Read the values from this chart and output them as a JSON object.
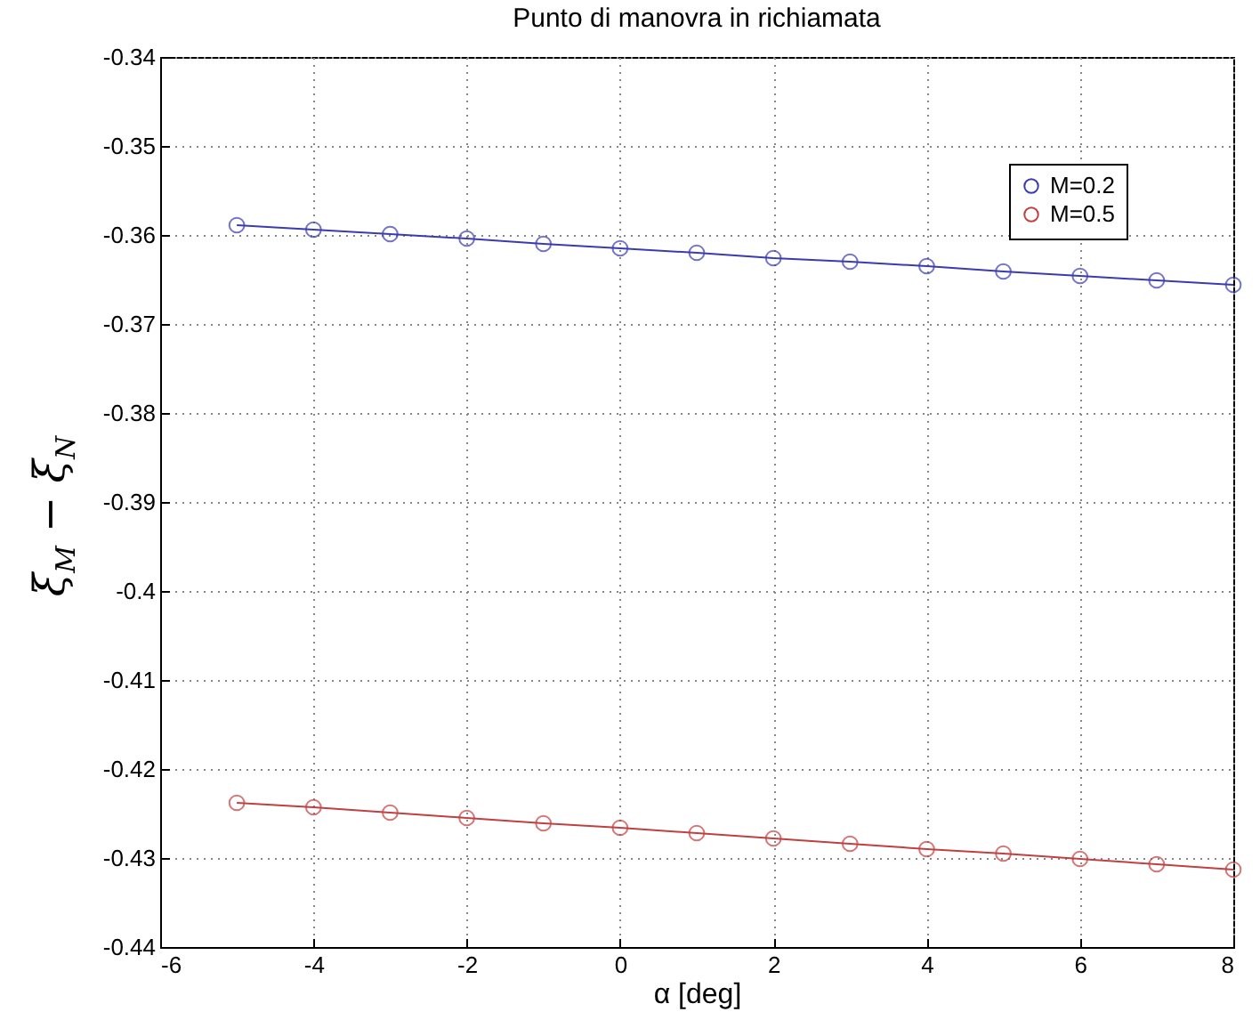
{
  "chart_data": {
    "type": "line",
    "title": "Punto di manovra in richiamata",
    "xlabel": "α  [deg]",
    "ylabel": "ξ$_{M}$ − ξ$_{N}$",
    "x": [
      -5,
      -4,
      -3,
      -2,
      -1,
      0,
      1,
      2,
      3,
      4,
      5,
      6,
      7,
      8
    ],
    "series": [
      {
        "name": "M=0.2",
        "color": "#3b3bb0",
        "values": [
          -0.3589,
          -0.3594,
          -0.3599,
          -0.3604,
          -0.361,
          -0.3615,
          -0.362,
          -0.3626,
          -0.363,
          -0.3635,
          -0.3641,
          -0.3646,
          -0.3651,
          -0.3656
        ]
      },
      {
        "name": "M=0.5",
        "color": "#c04040",
        "values": [
          -0.4238,
          -0.4243,
          -0.4249,
          -0.4255,
          -0.4261,
          -0.4266,
          -0.4272,
          -0.4278,
          -0.4284,
          -0.429,
          -0.4295,
          -0.4301,
          -0.4307,
          -0.4313
        ]
      }
    ],
    "xlim": [
      -6,
      8
    ],
    "xticks": [
      -6,
      -4,
      -2,
      0,
      2,
      4,
      6,
      8
    ],
    "ylim": [
      -0.44,
      -0.34
    ],
    "yticks": [
      -0.44,
      -0.43,
      -0.42,
      -0.41,
      -0.4,
      -0.39,
      -0.38,
      -0.37,
      -0.36,
      -0.35,
      -0.34
    ],
    "grid": true,
    "legend": "top right",
    "marker": "circle",
    "line_style": "solid"
  }
}
